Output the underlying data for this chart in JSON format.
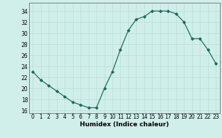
{
  "x": [
    0,
    1,
    2,
    3,
    4,
    5,
    6,
    7,
    8,
    9,
    10,
    11,
    12,
    13,
    14,
    15,
    16,
    17,
    18,
    19,
    20,
    21,
    22,
    23
  ],
  "y": [
    23,
    21.5,
    20.5,
    19.5,
    18.5,
    17.5,
    17,
    16.5,
    16.5,
    20,
    23,
    27,
    30.5,
    32.5,
    33,
    34,
    34,
    34,
    33.5,
    32,
    29,
    29,
    27,
    24.5
  ],
  "line_color": "#1a6b5a",
  "marker_color": "#1a6b5a",
  "bg_color": "#d0eeea",
  "grid_color": "#b8ddd8",
  "xlabel": "Humidex (Indice chaleur)",
  "ylabel_ticks": [
    16,
    18,
    20,
    22,
    24,
    26,
    28,
    30,
    32,
    34
  ],
  "xlim": [
    -0.5,
    23.5
  ],
  "ylim": [
    15.5,
    35.5
  ],
  "xticks": [
    0,
    1,
    2,
    3,
    4,
    5,
    6,
    7,
    8,
    9,
    10,
    11,
    12,
    13,
    14,
    15,
    16,
    17,
    18,
    19,
    20,
    21,
    22,
    23
  ],
  "font_size_label": 6.5,
  "font_size_tick": 5.5
}
